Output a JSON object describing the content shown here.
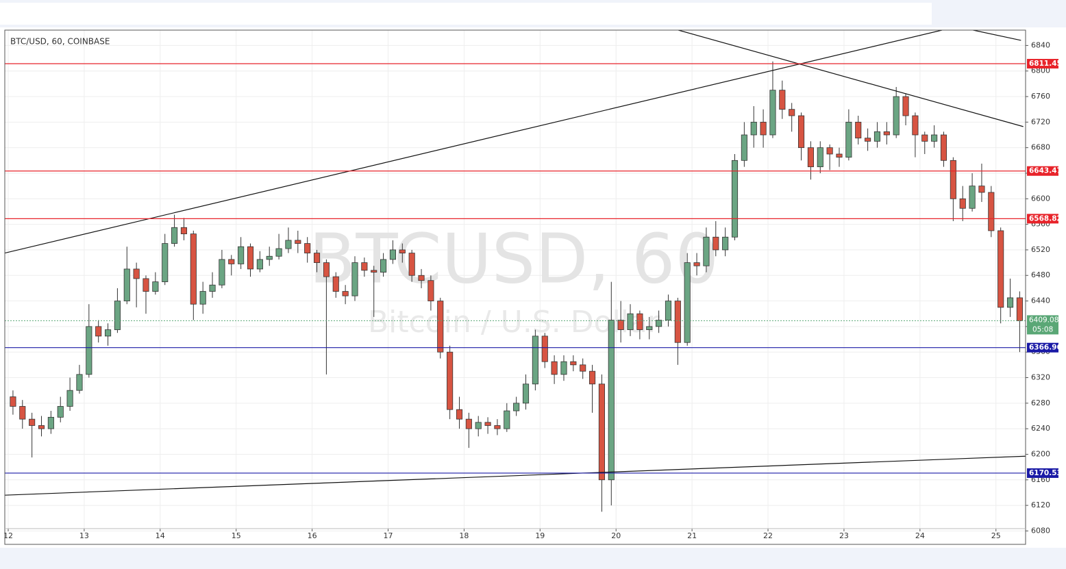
{
  "chart_data": {
    "type": "candlestick",
    "title": "BTC/USD, 60, COINBASE",
    "watermark": "BTCUSD, 60",
    "watermark_subtitle": "Bitcoin / U.S. Dollar",
    "x": [
      12.0625,
      12.1875,
      12.3125,
      12.4375,
      12.5625,
      12.6875,
      12.8125,
      12.9375,
      13.0625,
      13.1875,
      13.3125,
      13.4375,
      13.5625,
      13.6875,
      13.8125,
      13.9375,
      14.0625,
      14.1875,
      14.3125,
      14.4375,
      14.5625,
      14.6875,
      14.8125,
      14.9375,
      15.0625,
      15.1875,
      15.3125,
      15.4375,
      15.5625,
      15.6875,
      15.8125,
      15.9375,
      16.0625,
      16.1875,
      16.3125,
      16.4375,
      16.5625,
      16.6875,
      16.8125,
      16.9375,
      17.0625,
      17.1875,
      17.3125,
      17.4375,
      17.5625,
      17.6875,
      17.8125,
      17.9375,
      18.0625,
      18.1875,
      18.3125,
      18.4375,
      18.5625,
      18.6875,
      18.8125,
      18.9375,
      19.0625,
      19.1875,
      19.3125,
      19.4375,
      19.5625,
      19.6875,
      19.8125,
      19.9375,
      20.0625,
      20.1875,
      20.3125,
      20.4375,
      20.5625,
      20.6875,
      20.8125,
      20.9375,
      21.0625,
      21.1875,
      21.3125,
      21.4375,
      21.5625,
      21.6875,
      21.8125,
      21.9375,
      22.0625,
      22.1875,
      22.3125,
      22.4375,
      22.5625,
      22.6875,
      22.8125,
      22.9375,
      23.0625,
      23.1875,
      23.3125,
      23.4375,
      23.5625,
      23.6875,
      23.8125,
      23.9375,
      24.0625,
      24.1875,
      24.3125,
      24.4375,
      24.5625,
      24.6875,
      24.8125,
      24.9375,
      25.0625,
      25.1875,
      25.3125
    ],
    "open": [
      6290,
      6275,
      6255,
      6245,
      6240,
      6258,
      6275,
      6300,
      6325,
      6400,
      6385,
      6395,
      6440,
      6490,
      6475,
      6455,
      6470,
      6530,
      6555,
      6545,
      6435,
      6455,
      6465,
      6505,
      6498,
      6525,
      6490,
      6505,
      6510,
      6522,
      6535,
      6530,
      6515,
      6500,
      6478,
      6455,
      6448,
      6500,
      6488,
      6485,
      6505,
      6520,
      6515,
      6480,
      6472,
      6440,
      6360,
      6270,
      6255,
      6240,
      6250,
      6245,
      6240,
      6268,
      6280,
      6310,
      6385,
      6345,
      6325,
      6345,
      6340,
      6330,
      6310,
      6160,
      6410,
      6395,
      6420,
      6395,
      6400,
      6410,
      6440,
      6375,
      6500,
      6495,
      6540,
      6520,
      6540,
      6660,
      6700,
      6720,
      6700,
      6770,
      6740,
      6730,
      6680,
      6650,
      6680,
      6670,
      6665,
      6720,
      6695,
      6690,
      6705,
      6700,
      6760,
      6730,
      6700,
      6690,
      6700,
      6660,
      6600,
      6585,
      6620,
      6610,
      6550,
      6430,
      6445
    ],
    "high": [
      6300,
      6285,
      6265,
      6260,
      6268,
      6290,
      6320,
      6340,
      6435,
      6410,
      6405,
      6460,
      6525,
      6500,
      6480,
      6485,
      6545,
      6575,
      6570,
      6550,
      6470,
      6485,
      6520,
      6512,
      6540,
      6530,
      6518,
      6525,
      6545,
      6555,
      6550,
      6540,
      6520,
      6505,
      6485,
      6465,
      6510,
      6508,
      6495,
      6515,
      6535,
      6530,
      6520,
      6490,
      6480,
      6445,
      6370,
      6290,
      6265,
      6260,
      6258,
      6255,
      6280,
      6290,
      6325,
      6395,
      6390,
      6355,
      6355,
      6355,
      6350,
      6340,
      6325,
      6470,
      6440,
      6435,
      6425,
      6415,
      6425,
      6450,
      6445,
      6515,
      6515,
      6555,
      6565,
      6555,
      6670,
      6720,
      6745,
      6740,
      6815,
      6785,
      6750,
      6735,
      6690,
      6690,
      6685,
      6680,
      6740,
      6730,
      6710,
      6720,
      6720,
      6775,
      6765,
      6735,
      6705,
      6715,
      6705,
      6665,
      6620,
      6640,
      6655,
      6620,
      6555,
      6475,
      6455
    ],
    "low": [
      6262,
      6240,
      6195,
      6228,
      6232,
      6250,
      6268,
      6295,
      6320,
      6375,
      6370,
      6390,
      6435,
      6430,
      6420,
      6450,
      6465,
      6525,
      6535,
      6410,
      6420,
      6445,
      6460,
      6480,
      6490,
      6478,
      6485,
      6495,
      6505,
      6515,
      6515,
      6500,
      6485,
      6325,
      6445,
      6435,
      6440,
      6478,
      6415,
      6478,
      6498,
      6500,
      6470,
      6460,
      6425,
      6350,
      6255,
      6240,
      6210,
      6228,
      6232,
      6230,
      6235,
      6260,
      6270,
      6300,
      6335,
      6310,
      6315,
      6330,
      6318,
      6265,
      6110,
      6120,
      6375,
      6385,
      6380,
      6380,
      6390,
      6400,
      6340,
      6370,
      6480,
      6485,
      6510,
      6510,
      6535,
      6650,
      6680,
      6680,
      6695,
      6725,
      6705,
      6660,
      6630,
      6640,
      6645,
      6650,
      6660,
      6685,
      6675,
      6680,
      6685,
      6695,
      6715,
      6665,
      6670,
      6680,
      6650,
      6565,
      6565,
      6580,
      6595,
      6540,
      6405,
      6415,
      6360
    ],
    "close": [
      6275,
      6255,
      6245,
      6240,
      6258,
      6275,
      6300,
      6325,
      6400,
      6385,
      6395,
      6440,
      6490,
      6475,
      6455,
      6470,
      6530,
      6555,
      6545,
      6435,
      6455,
      6465,
      6505,
      6498,
      6525,
      6490,
      6505,
      6510,
      6522,
      6535,
      6530,
      6515,
      6500,
      6478,
      6455,
      6448,
      6500,
      6488,
      6485,
      6505,
      6520,
      6515,
      6480,
      6472,
      6440,
      6360,
      6270,
      6255,
      6240,
      6250,
      6245,
      6240,
      6268,
      6280,
      6310,
      6385,
      6345,
      6325,
      6345,
      6340,
      6330,
      6310,
      6160,
      6410,
      6395,
      6420,
      6395,
      6400,
      6410,
      6440,
      6375,
      6500,
      6495,
      6540,
      6520,
      6540,
      6660,
      6700,
      6720,
      6700,
      6770,
      6740,
      6730,
      6680,
      6650,
      6680,
      6670,
      6665,
      6720,
      6695,
      6690,
      6705,
      6700,
      6760,
      6730,
      6700,
      6690,
      6700,
      6660,
      6600,
      6585,
      6620,
      6610,
      6550,
      6430,
      6445,
      6409
    ],
    "up_color": "#6ba583",
    "down_color": "#d75442",
    "xlim": [
      11.955,
      25.39
    ],
    "ylim": [
      6059,
      6864
    ],
    "xticks": [
      12,
      13,
      14,
      15,
      16,
      17,
      18,
      19,
      20,
      21,
      22,
      23,
      24,
      25
    ],
    "yticks": [
      6080,
      6120,
      6160,
      6200,
      6240,
      6280,
      6320,
      6360,
      6400,
      6440,
      6480,
      6520,
      6560,
      6600,
      6640,
      6680,
      6720,
      6760,
      6800,
      6840
    ],
    "grid": true,
    "hlines": [
      {
        "value": 6811.45,
        "color": "#e8232a"
      },
      {
        "value": 6643.47,
        "color": "#e8232a"
      },
      {
        "value": 6568.82,
        "color": "#e8232a"
      },
      {
        "value": 6366.96,
        "color": "#1a1aa6"
      },
      {
        "value": 6170.53,
        "color": "#1a1aa6"
      }
    ],
    "last_price": 6409.08,
    "last_price_color": "#5aa776",
    "countdown": "05:08",
    "trendlines": [
      {
        "points": [
          [
            11.955,
            6515
          ],
          [
            24.29,
            6864
          ]
        ]
      },
      {
        "points": [
          [
            20.82,
            6864
          ],
          [
            25.36,
            6713
          ]
        ]
      },
      {
        "points": [
          [
            24.7,
            6864
          ],
          [
            25.33,
            6848
          ]
        ]
      },
      {
        "points": [
          [
            11.955,
            6136
          ],
          [
            25.39,
            6197
          ]
        ]
      }
    ]
  }
}
